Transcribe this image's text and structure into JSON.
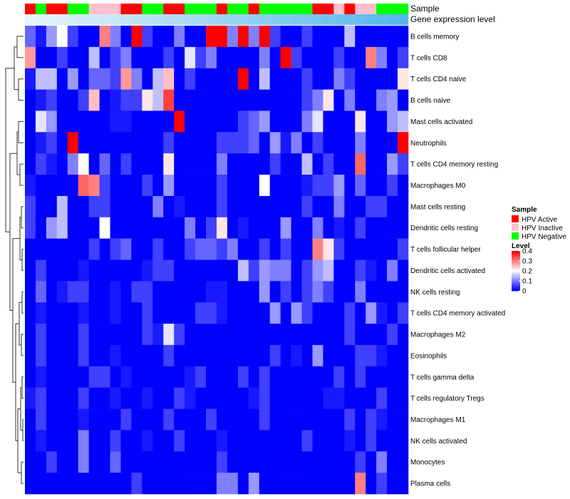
{
  "chart_data": {
    "type": "heatmap",
    "annotation_tracks": [
      {
        "name": "Sample",
        "label": "Sample"
      },
      {
        "name": "Gene expression level",
        "label": "Gene expression level"
      }
    ],
    "sample_groups": [
      "HPV Active",
      "HPV Negative",
      "HPV Active",
      "HPV Active",
      "HPV Negative",
      "HPV Negative",
      "HPV Inactive",
      "HPV Inactive",
      "HPV Inactive",
      "HPV Active",
      "HPV Active",
      "HPV Negative",
      "HPV Negative",
      "HPV Active",
      "HPV Active",
      "HPV Negative",
      "HPV Negative",
      "HPV Negative",
      "HPV Active",
      "HPV Negative",
      "HPV Negative",
      "HPV Active",
      "HPV Negative",
      "HPV Negative",
      "HPV Negative",
      "HPV Negative",
      "HPV Negative",
      "HPV Active",
      "HPV Active",
      "HPV Inactive",
      "HPV Active",
      "HPV Inactive",
      "HPV Inactive",
      "HPV Negative",
      "HPV Negative",
      "HPV Negative"
    ],
    "expression_gradient": {
      "low": "#e8f4fa",
      "high": "#55b8ec"
    },
    "rows": [
      "B cells memory",
      "T cells CD8",
      "T cells CD4 naive",
      "B cells naive",
      "Mast cells activated",
      "Neutrophils",
      "T cells CD4 memory resting",
      "Macrophages M0",
      "Mast cells resting",
      "Dendritic cells resting",
      "T cells follicular helper",
      "Dendritic cells activated",
      "NK cells resting",
      "T cells CD4 memory activated",
      "Macrophages M2",
      "Eosinophils",
      "T cells gamma delta",
      "T cells regulatory  Tregs",
      "Macrophages M1",
      "NK cells activated",
      "Monocytes",
      "Plasma cells"
    ],
    "values": [
      [
        0.08,
        0.02,
        0.12,
        0.2,
        0.05,
        0.0,
        0.0,
        0.3,
        0.1,
        0.0,
        0.4,
        0.05,
        0.0,
        0.0,
        0.1,
        0.0,
        0.0,
        0.4,
        0.4,
        0.1,
        0.4,
        0.1,
        0.4,
        0.05,
        0.0,
        0.0,
        0.05,
        0.0,
        0.0,
        0.0,
        0.15,
        0.0,
        0.0,
        0.0,
        0.0,
        0.0
      ],
      [
        0.28,
        0.0,
        0.0,
        0.05,
        0.0,
        0.0,
        0.15,
        0.0,
        0.05,
        0.1,
        0.0,
        0.0,
        0.0,
        0.05,
        0.0,
        0.18,
        0.05,
        0.1,
        0.0,
        0.0,
        0.0,
        0.0,
        0.1,
        0.0,
        0.4,
        0.05,
        0.0,
        0.0,
        0.0,
        0.05,
        0.0,
        0.0,
        0.3,
        0.1,
        0.0,
        0.05
      ],
      [
        0.02,
        0.15,
        0.15,
        0.0,
        0.12,
        0.0,
        0.08,
        0.08,
        0.05,
        0.28,
        0.1,
        0.0,
        0.15,
        0.25,
        0.0,
        0.05,
        0.0,
        0.0,
        0.0,
        0.0,
        0.4,
        0.0,
        0.15,
        0.0,
        0.0,
        0.0,
        0.05,
        0.0,
        0.0,
        0.1,
        0.05,
        0.0,
        0.0,
        0.0,
        0.0,
        0.22
      ],
      [
        0.0,
        0.02,
        0.05,
        0.0,
        0.0,
        0.05,
        0.25,
        0.0,
        0.02,
        0.05,
        0.05,
        0.22,
        0.15,
        0.35,
        0.0,
        0.0,
        0.0,
        0.0,
        0.0,
        0.0,
        0.0,
        0.0,
        0.0,
        0.0,
        0.0,
        0.0,
        0.05,
        0.1,
        0.22,
        0.0,
        0.1,
        0.0,
        0.0,
        0.1,
        0.12,
        0.0
      ],
      [
        0.0,
        0.18,
        0.12,
        0.0,
        0.0,
        0.0,
        0.0,
        0.0,
        0.02,
        0.02,
        0.0,
        0.0,
        0.0,
        0.0,
        0.4,
        0.0,
        0.0,
        0.0,
        0.0,
        0.0,
        0.05,
        0.08,
        0.12,
        0.0,
        0.0,
        0.0,
        0.1,
        0.18,
        0.0,
        0.0,
        0.0,
        0.22,
        0.0,
        0.0,
        0.12,
        0.15
      ],
      [
        0.0,
        0.02,
        0.05,
        0.0,
        0.4,
        0.0,
        0.0,
        0.0,
        0.0,
        0.0,
        0.0,
        0.0,
        0.0,
        0.05,
        0.0,
        0.0,
        0.0,
        0.0,
        0.05,
        0.05,
        0.05,
        0.08,
        0.0,
        0.12,
        0.02,
        0.1,
        0.0,
        0.05,
        0.0,
        0.0,
        0.0,
        0.1,
        0.0,
        0.0,
        0.0,
        0.4
      ],
      [
        0.0,
        0.05,
        0.02,
        0.0,
        0.1,
        0.2,
        0.0,
        0.08,
        0.0,
        0.05,
        0.0,
        0.0,
        0.0,
        0.22,
        0.0,
        0.0,
        0.0,
        0.0,
        0.1,
        0.0,
        0.0,
        0.0,
        0.0,
        0.05,
        0.0,
        0.0,
        0.15,
        0.0,
        0.05,
        0.0,
        0.0,
        0.32,
        0.0,
        0.0,
        0.12,
        0.05
      ],
      [
        0.02,
        0.0,
        0.0,
        0.0,
        0.0,
        0.32,
        0.3,
        0.05,
        0.0,
        0.0,
        0.0,
        0.05,
        0.0,
        0.12,
        0.0,
        0.0,
        0.0,
        0.0,
        0.05,
        0.0,
        0.0,
        0.0,
        0.2,
        0.0,
        0.0,
        0.0,
        0.02,
        0.05,
        0.05,
        0.12,
        0.0,
        0.08,
        0.0,
        0.0,
        0.05,
        0.0
      ],
      [
        0.05,
        0.0,
        0.0,
        0.15,
        0.0,
        0.0,
        0.05,
        0.05,
        0.0,
        0.0,
        0.0,
        0.0,
        0.1,
        0.0,
        0.02,
        0.0,
        0.0,
        0.0,
        0.05,
        0.0,
        0.0,
        0.0,
        0.0,
        0.0,
        0.0,
        0.0,
        0.05,
        0.0,
        0.0,
        0.1,
        0.0,
        0.0,
        0.05,
        0.05,
        0.0,
        0.0
      ],
      [
        0.05,
        0.0,
        0.12,
        0.15,
        0.0,
        0.0,
        0.0,
        0.2,
        0.0,
        0.0,
        0.0,
        0.0,
        0.0,
        0.0,
        0.0,
        0.1,
        0.0,
        0.05,
        0.22,
        0.0,
        0.02,
        0.0,
        0.0,
        0.0,
        0.12,
        0.0,
        0.0,
        0.1,
        0.0,
        0.02,
        0.0,
        0.05,
        0.0,
        0.0,
        0.0,
        0.0
      ],
      [
        0.0,
        0.0,
        0.0,
        0.0,
        0.0,
        0.0,
        0.05,
        0.0,
        0.05,
        0.08,
        0.0,
        0.0,
        0.05,
        0.0,
        0.0,
        0.05,
        0.08,
        0.08,
        0.05,
        0.1,
        0.0,
        0.0,
        0.05,
        0.0,
        0.05,
        0.0,
        0.0,
        0.3,
        0.22,
        0.05,
        0.0,
        0.0,
        0.0,
        0.0,
        0.0,
        0.05
      ],
      [
        0.0,
        0.05,
        0.0,
        0.0,
        0.0,
        0.02,
        0.0,
        0.0,
        0.0,
        0.0,
        0.0,
        0.02,
        0.05,
        0.05,
        0.0,
        0.0,
        0.0,
        0.0,
        0.0,
        0.0,
        0.15,
        0.05,
        0.12,
        0.1,
        0.1,
        0.0,
        0.05,
        0.12,
        0.15,
        0.0,
        0.0,
        0.05,
        0.02,
        0.0,
        0.1,
        0.0
      ],
      [
        0.0,
        0.08,
        0.0,
        0.02,
        0.05,
        0.05,
        0.0,
        0.0,
        0.02,
        0.0,
        0.05,
        0.05,
        0.0,
        0.0,
        0.0,
        0.0,
        0.0,
        0.02,
        0.02,
        0.0,
        0.0,
        0.0,
        0.12,
        0.0,
        0.05,
        0.0,
        0.05,
        0.1,
        0.05,
        0.0,
        0.0,
        0.1,
        0.0,
        0.0,
        0.0,
        0.0
      ],
      [
        0.0,
        0.02,
        0.0,
        0.0,
        0.0,
        0.02,
        0.0,
        0.0,
        0.02,
        0.0,
        0.0,
        0.05,
        0.0,
        0.0,
        0.0,
        0.0,
        0.05,
        0.05,
        0.02,
        0.0,
        0.0,
        0.0,
        0.0,
        0.12,
        0.0,
        0.12,
        0.05,
        0.0,
        0.0,
        0.0,
        0.05,
        0.0,
        0.12,
        0.02,
        0.0,
        0.05
      ],
      [
        0.0,
        0.05,
        0.0,
        0.0,
        0.0,
        0.05,
        0.0,
        0.0,
        0.0,
        0.0,
        0.0,
        0.05,
        0.02,
        0.18,
        0.05,
        0.0,
        0.0,
        0.0,
        0.0,
        0.0,
        0.0,
        0.0,
        0.0,
        0.0,
        0.0,
        0.0,
        0.0,
        0.0,
        0.0,
        0.0,
        0.05,
        0.0,
        0.0,
        0.0,
        0.05,
        0.0
      ],
      [
        0.0,
        0.05,
        0.0,
        0.0,
        0.0,
        0.05,
        0.0,
        0.0,
        0.02,
        0.0,
        0.0,
        0.0,
        0.0,
        0.05,
        0.0,
        0.0,
        0.0,
        0.0,
        0.0,
        0.0,
        0.0,
        0.0,
        0.0,
        0.05,
        0.0,
        0.02,
        0.0,
        0.12,
        0.0,
        0.0,
        0.0,
        0.05,
        0.05,
        0.02,
        0.0,
        0.0
      ],
      [
        0.0,
        0.02,
        0.0,
        0.0,
        0.0,
        0.0,
        0.05,
        0.05,
        0.0,
        0.02,
        0.0,
        0.0,
        0.0,
        0.0,
        0.0,
        0.02,
        0.05,
        0.0,
        0.0,
        0.0,
        0.05,
        0.0,
        0.05,
        0.0,
        0.0,
        0.0,
        0.0,
        0.0,
        0.0,
        0.05,
        0.0,
        0.05,
        0.0,
        0.0,
        0.0,
        0.0
      ],
      [
        0.02,
        0.05,
        0.0,
        0.0,
        0.0,
        0.05,
        0.0,
        0.0,
        0.02,
        0.0,
        0.0,
        0.02,
        0.0,
        0.0,
        0.05,
        0.02,
        0.0,
        0.0,
        0.0,
        0.0,
        0.0,
        0.02,
        0.05,
        0.0,
        0.0,
        0.0,
        0.0,
        0.0,
        0.02,
        0.02,
        0.0,
        0.0,
        0.0,
        0.05,
        0.0,
        0.0
      ],
      [
        0.0,
        0.05,
        0.0,
        0.0,
        0.0,
        0.02,
        0.0,
        0.0,
        0.0,
        0.05,
        0.0,
        0.0,
        0.0,
        0.05,
        0.0,
        0.0,
        0.0,
        0.05,
        0.0,
        0.0,
        0.0,
        0.0,
        0.05,
        0.0,
        0.0,
        0.0,
        0.0,
        0.0,
        0.0,
        0.0,
        0.05,
        0.0,
        0.05,
        0.02,
        0.0,
        0.0
      ],
      [
        0.0,
        0.02,
        0.0,
        0.0,
        0.0,
        0.1,
        0.0,
        0.0,
        0.05,
        0.0,
        0.0,
        0.02,
        0.0,
        0.0,
        0.05,
        0.0,
        0.0,
        0.0,
        0.02,
        0.0,
        0.0,
        0.0,
        0.0,
        0.0,
        0.0,
        0.0,
        0.05,
        0.0,
        0.0,
        0.0,
        0.02,
        0.0,
        0.05,
        0.0,
        0.0,
        0.0
      ],
      [
        0.0,
        0.0,
        0.05,
        0.0,
        0.0,
        0.1,
        0.0,
        0.0,
        0.08,
        0.0,
        0.0,
        0.0,
        0.0,
        0.0,
        0.0,
        0.0,
        0.0,
        0.0,
        0.05,
        0.0,
        0.0,
        0.0,
        0.0,
        0.0,
        0.0,
        0.0,
        0.0,
        0.0,
        0.0,
        0.0,
        0.0,
        0.05,
        0.0,
        0.1,
        0.0,
        0.0
      ],
      [
        0.0,
        0.0,
        0.0,
        0.0,
        0.0,
        0.0,
        0.0,
        0.0,
        0.0,
        0.0,
        0.05,
        0.0,
        0.0,
        0.0,
        0.0,
        0.0,
        0.0,
        0.0,
        0.1,
        0.1,
        0.0,
        0.12,
        0.0,
        0.0,
        0.0,
        0.0,
        0.0,
        0.0,
        0.0,
        0.0,
        0.0,
        0.3,
        0.0,
        0.05,
        0.0,
        0.0
      ]
    ],
    "color_scale": {
      "min": 0,
      "max": 0.4,
      "colors": [
        "#0000ff",
        "#ffffff",
        "#ff0000"
      ]
    },
    "legend": {
      "sample_title": "Sample",
      "sample_entries": [
        {
          "label": "HPV Active",
          "color": "#ff0000"
        },
        {
          "label": "HPV Inactive",
          "color": "#ffc0cb"
        },
        {
          "label": "HPV Negative",
          "color": "#00ff00"
        }
      ],
      "level_title": "Level",
      "level_ticks": [
        "0.4",
        "0.3",
        "0.2",
        "0.1",
        "0"
      ],
      "level_tick_values": [
        0.4,
        0.3,
        0.2,
        0.1,
        0
      ]
    },
    "legend_position": "right",
    "row_dendrogram": true
  }
}
